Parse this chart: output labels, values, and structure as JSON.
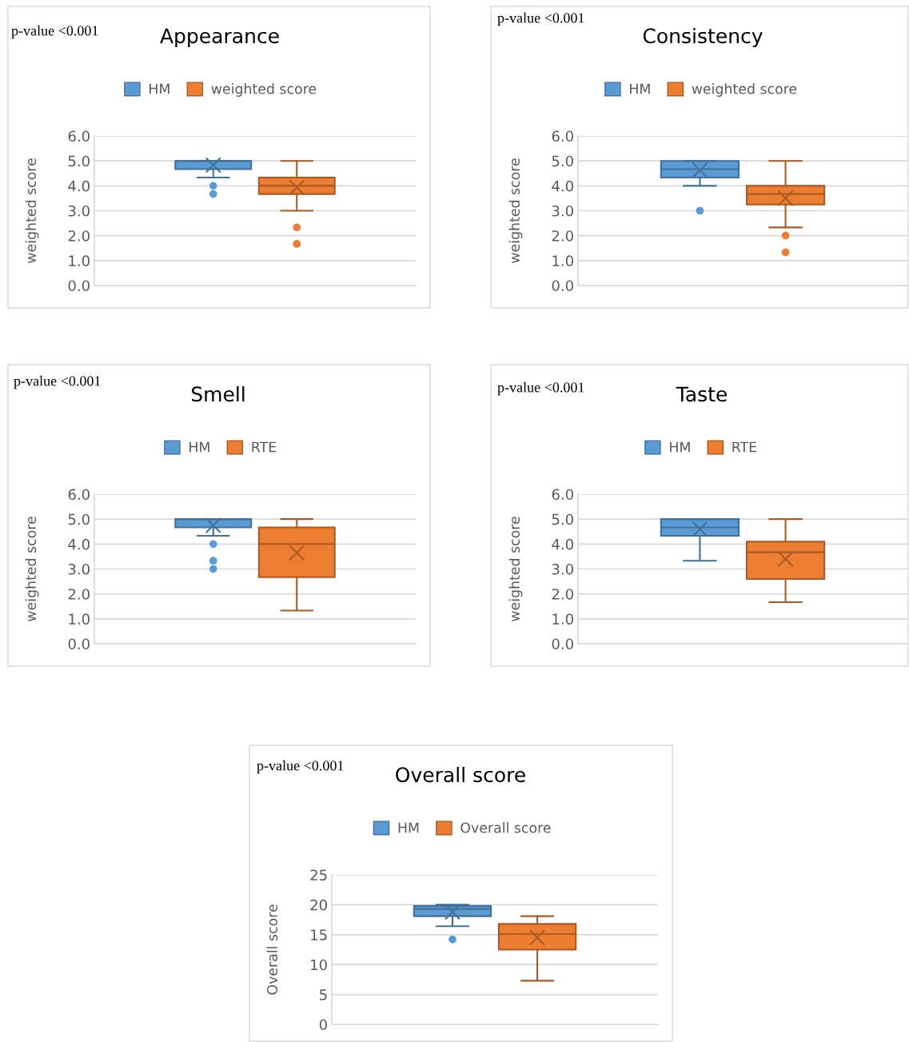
{
  "chart_data": [
    {
      "type": "box",
      "title": "Appearance",
      "ylabel": "weighted score",
      "annotations": [
        "p-value <0.001"
      ],
      "categories": [
        null
      ],
      "ylim": [
        0,
        6
      ],
      "yticks": [
        {
          "value": 0,
          "label": "0.0"
        },
        {
          "value": 1,
          "label": "1.0"
        },
        {
          "value": 2,
          "label": "2.0"
        },
        {
          "value": 3,
          "label": "3.0"
        },
        {
          "value": 4,
          "label": "4.0"
        },
        {
          "value": 5,
          "label": "5.0"
        },
        {
          "value": 6,
          "label": "6.0"
        }
      ],
      "grid": "y",
      "legend": "top",
      "series": [
        {
          "name": "HM",
          "color": "#5b9bd5",
          "boxes": [
            {
              "low": 4.33,
              "q1": 4.67,
              "median": 5,
              "q3": 5,
              "high": 5,
              "mean": 4.83,
              "outliers": [
                4,
                3.67
              ]
            }
          ]
        },
        {
          "name": "weighted score",
          "color": "#ed7d31",
          "boxes": [
            {
              "low": 3,
              "q1": 3.67,
              "median": 4,
              "q3": 4.33,
              "high": 5,
              "mean": 3.93,
              "outliers": [
                2.33,
                1.67
              ]
            }
          ]
        }
      ]
    },
    {
      "type": "box",
      "title": "Consistency",
      "ylabel": "weighted score",
      "annotations": [
        "p-value <0.001"
      ],
      "categories": [
        null
      ],
      "ylim": [
        0,
        6
      ],
      "yticks": [
        {
          "value": 0,
          "label": "0.0"
        },
        {
          "value": 1,
          "label": "1.0"
        },
        {
          "value": 2,
          "label": "2.0"
        },
        {
          "value": 3,
          "label": "3.0"
        },
        {
          "value": 4,
          "label": "4.0"
        },
        {
          "value": 5,
          "label": "5.0"
        },
        {
          "value": 6,
          "label": "6.0"
        }
      ],
      "grid": "y",
      "legend": "top",
      "series": [
        {
          "name": "HM",
          "color": "#5b9bd5",
          "boxes": [
            {
              "low": 4,
              "q1": 4.33,
              "median": 4.67,
              "q3": 5,
              "high": 5,
              "mean": 4.63,
              "outliers": [
                3
              ]
            }
          ]
        },
        {
          "name": "weighted score",
          "color": "#ed7d31",
          "boxes": [
            {
              "low": 2.33,
              "q1": 3.25,
              "median": 3.67,
              "q3": 4,
              "high": 5,
              "mean": 3.5,
              "outliers": [
                2,
                1.33
              ]
            }
          ]
        }
      ]
    },
    {
      "type": "box",
      "title": "Smell",
      "ylabel": "weighted score",
      "annotations": [
        "p-value <0.001"
      ],
      "categories": [
        null
      ],
      "ylim": [
        0,
        6
      ],
      "yticks": [
        {
          "value": 0,
          "label": "0.0"
        },
        {
          "value": 1,
          "label": "1.0"
        },
        {
          "value": 2,
          "label": "2.0"
        },
        {
          "value": 3,
          "label": "3.0"
        },
        {
          "value": 4,
          "label": "4.0"
        },
        {
          "value": 5,
          "label": "5.0"
        },
        {
          "value": 6,
          "label": "6.0"
        }
      ],
      "grid": "y",
      "legend": "top",
      "series": [
        {
          "name": "HM",
          "color": "#5b9bd5",
          "boxes": [
            {
              "low": 4.33,
              "q1": 4.67,
              "median": 5,
              "q3": 5,
              "high": 5,
              "mean": 4.75,
              "outliers": [
                4,
                3.33,
                3
              ]
            }
          ]
        },
        {
          "name": "RTE",
          "color": "#ed7d31",
          "boxes": [
            {
              "low": 1.33,
              "q1": 2.67,
              "median": 4,
              "q3": 4.67,
              "high": 5,
              "mean": 3.65
            }
          ]
        }
      ]
    },
    {
      "type": "box",
      "title": "Taste",
      "ylabel": "weighted score",
      "annotations": [
        "p-value <0.001"
      ],
      "categories": [
        null
      ],
      "ylim": [
        0,
        6
      ],
      "yticks": [
        {
          "value": 0,
          "label": "0.0"
        },
        {
          "value": 1,
          "label": "1.0"
        },
        {
          "value": 2,
          "label": "2.0"
        },
        {
          "value": 3,
          "label": "3.0"
        },
        {
          "value": 4,
          "label": "4.0"
        },
        {
          "value": 5,
          "label": "5.0"
        },
        {
          "value": 6,
          "label": "6.0"
        }
      ],
      "grid": "y",
      "legend": "top",
      "series": [
        {
          "name": "HM",
          "color": "#5b9bd5",
          "boxes": [
            {
              "low": 3.33,
              "q1": 4.33,
              "median": 4.67,
              "q3": 5,
              "high": 5,
              "mean": 4.6
            }
          ]
        },
        {
          "name": "RTE",
          "color": "#ed7d31",
          "boxes": [
            {
              "low": 1.67,
              "q1": 2.6,
              "median": 3.67,
              "q3": 4.1,
              "high": 5,
              "mean": 3.4
            }
          ]
        }
      ]
    },
    {
      "type": "box",
      "title": "Overall score",
      "ylabel": "Overall score",
      "annotations": [
        "p-value <0.001"
      ],
      "categories": [
        null
      ],
      "ylim": [
        0,
        25
      ],
      "yticks": [
        0,
        5,
        10,
        15,
        20,
        25
      ],
      "grid": "y",
      "legend": "top",
      "series": [
        {
          "name": "HM",
          "color": "#5b9bd5",
          "boxes": [
            {
              "low": 16.4,
              "q1": 18.1,
              "median": 19.3,
              "q3": 19.8,
              "high": 20,
              "mean": 18.8,
              "outliers": [
                14.2
              ]
            }
          ]
        },
        {
          "name": "Overall score",
          "color": "#ed7d31",
          "boxes": [
            {
              "low": 7.3,
              "q1": 12.5,
              "median": 15.1,
              "q3": 16.8,
              "high": 18.1,
              "mean": 14.5
            }
          ]
        }
      ]
    }
  ]
}
